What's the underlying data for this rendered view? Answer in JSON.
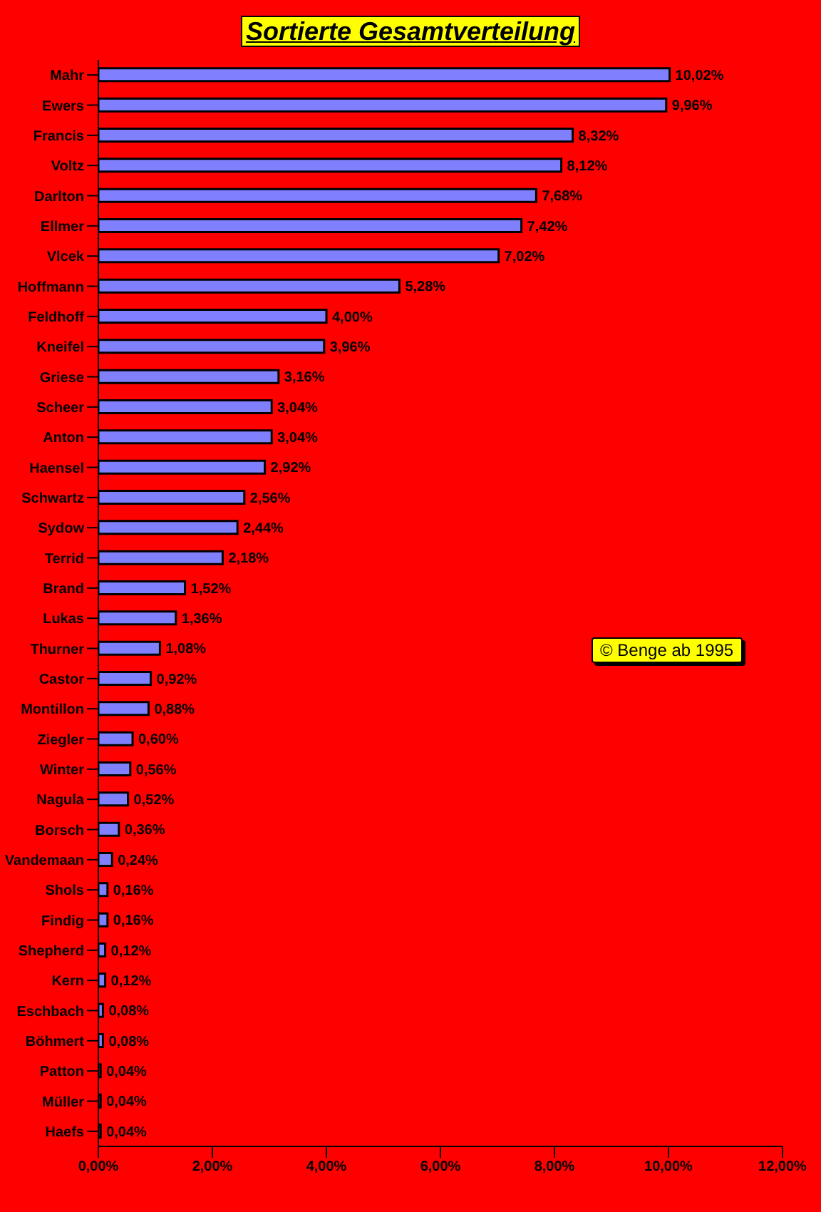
{
  "chart_data": {
    "type": "bar",
    "orientation": "horizontal",
    "title": "Sortierte Gesamtverteilung",
    "categories": [
      "Mahr",
      "Ewers",
      "Francis",
      "Voltz",
      "Darlton",
      "Ellmer",
      "Vlcek",
      "Hoffmann",
      "Feldhoff",
      "Kneifel",
      "Griese",
      "Scheer",
      "Anton",
      "Haensel",
      "Schwartz",
      "Sydow",
      "Terrid",
      "Brand",
      "Lukas",
      "Thurner",
      "Castor",
      "Montillon",
      "Ziegler",
      "Winter",
      "Nagula",
      "Borsch",
      "Vandemaan",
      "Shols",
      "Findig",
      "Shepherd",
      "Kern",
      "Eschbach",
      "Böhmert",
      "Patton",
      "Müller",
      "Haefs"
    ],
    "values": [
      10.02,
      9.96,
      8.32,
      8.12,
      7.68,
      7.42,
      7.02,
      5.28,
      4.0,
      3.96,
      3.16,
      3.04,
      3.04,
      2.92,
      2.56,
      2.44,
      2.18,
      1.52,
      1.36,
      1.08,
      0.92,
      0.88,
      0.6,
      0.56,
      0.52,
      0.36,
      0.24,
      0.16,
      0.16,
      0.12,
      0.12,
      0.08,
      0.08,
      0.04,
      0.04,
      0.04
    ],
    "value_labels": [
      "10,02%",
      "9,96%",
      "8,32%",
      "8,12%",
      "7,68%",
      "7,42%",
      "7,02%",
      "5,28%",
      "4,00%",
      "3,96%",
      "3,16%",
      "3,04%",
      "3,04%",
      "2,92%",
      "2,56%",
      "2,44%",
      "2,18%",
      "1,52%",
      "1,36%",
      "1,08%",
      "0,92%",
      "0,88%",
      "0,60%",
      "0,56%",
      "0,52%",
      "0,36%",
      "0,24%",
      "0,16%",
      "0,16%",
      "0,12%",
      "0,12%",
      "0,08%",
      "0,08%",
      "0,04%",
      "0,04%",
      "0,04%"
    ],
    "color": "#8080ff",
    "xlim": [
      0,
      12
    ],
    "xticks": [
      {
        "value": 0,
        "label": "0,00%"
      },
      {
        "value": 2,
        "label": "2,00%"
      },
      {
        "value": 4,
        "label": "4,00%"
      },
      {
        "value": 6,
        "label": "6,00%"
      },
      {
        "value": 8,
        "label": "8,00%"
      },
      {
        "value": 10,
        "label": "10,00%"
      },
      {
        "value": 12,
        "label": "12,00%"
      }
    ],
    "grid": false,
    "annotations": [
      "© Benge ab 1995"
    ]
  }
}
